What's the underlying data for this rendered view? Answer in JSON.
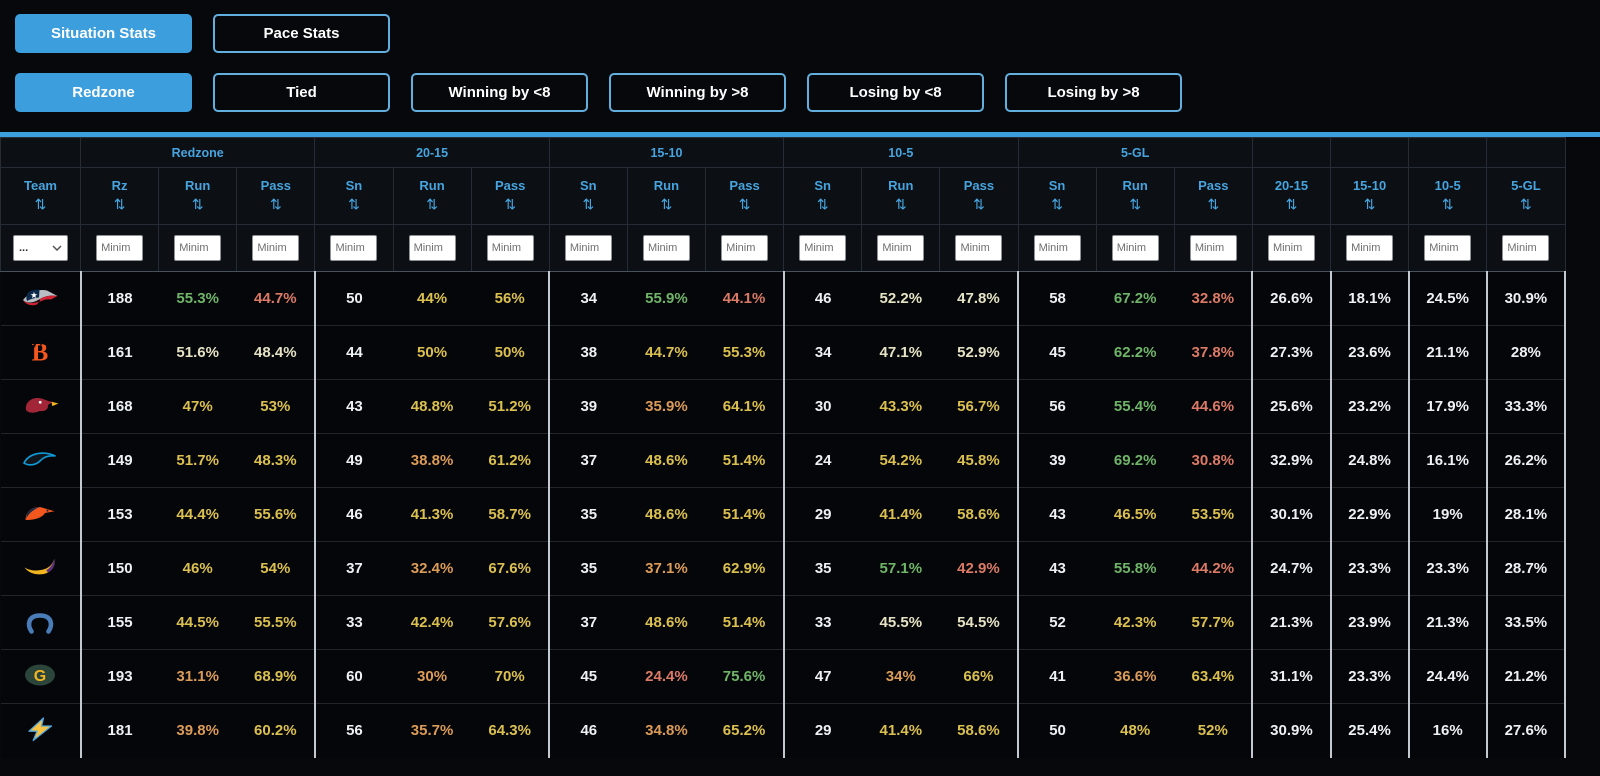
{
  "accent_color": "#3d9edd",
  "header_text_color": "#46a4de",
  "tabs_primary": [
    {
      "label": "Situation Stats",
      "active": true
    },
    {
      "label": "Pace Stats",
      "active": false
    }
  ],
  "tabs_secondary": [
    {
      "label": "Redzone",
      "active": true
    },
    {
      "label": "Tied",
      "active": false
    },
    {
      "label": "Winning by <8",
      "active": false
    },
    {
      "label": "Winning by >8",
      "active": false
    },
    {
      "label": "Losing by <8",
      "active": false
    },
    {
      "label": "Losing by >8",
      "active": false
    }
  ],
  "icons": {
    "sort": "⇅",
    "dropdown_chevron": "⌄"
  },
  "table": {
    "team_filter_value": "...",
    "filter_placeholder": "Minim",
    "heat_colors": {
      "g": "#6fb568",
      "y": "#dcc04f",
      "o": "#dc9b57",
      "s": "#dc7a66",
      "p": "#e6e2c4",
      "w": "#eef1f4"
    },
    "groups": [
      {
        "label": "",
        "cols": [
          {
            "label": "Team",
            "type": "team"
          }
        ]
      },
      {
        "label": "Redzone",
        "cols": [
          {
            "label": "Rz",
            "type": "count"
          },
          {
            "label": "Run",
            "type": "pct"
          },
          {
            "label": "Pass",
            "type": "pct"
          }
        ]
      },
      {
        "label": "20-15",
        "cols": [
          {
            "label": "Sn",
            "type": "count"
          },
          {
            "label": "Run",
            "type": "pct"
          },
          {
            "label": "Pass",
            "type": "pct"
          }
        ]
      },
      {
        "label": "15-10",
        "cols": [
          {
            "label": "Sn",
            "type": "count"
          },
          {
            "label": "Run",
            "type": "pct"
          },
          {
            "label": "Pass",
            "type": "pct"
          }
        ]
      },
      {
        "label": "10-5",
        "cols": [
          {
            "label": "Sn",
            "type": "count"
          },
          {
            "label": "Run",
            "type": "pct"
          },
          {
            "label": "Pass",
            "type": "pct"
          }
        ]
      },
      {
        "label": "5-GL",
        "cols": [
          {
            "label": "Sn",
            "type": "count"
          },
          {
            "label": "Run",
            "type": "pct"
          },
          {
            "label": "Pass",
            "type": "pct"
          }
        ]
      },
      {
        "label": "",
        "cols": [
          {
            "label": "20-15",
            "type": "plain"
          }
        ]
      },
      {
        "label": "",
        "cols": [
          {
            "label": "15-10",
            "type": "plain"
          }
        ]
      },
      {
        "label": "",
        "cols": [
          {
            "label": "10-5",
            "type": "plain"
          }
        ]
      },
      {
        "label": "",
        "cols": [
          {
            "label": "5-GL",
            "type": "plain"
          }
        ]
      }
    ],
    "rows": [
      {
        "team": "patriots",
        "cells": [
          {
            "v": "188"
          },
          {
            "v": "55.3%",
            "c": "g"
          },
          {
            "v": "44.7%",
            "c": "s"
          },
          {
            "v": "50"
          },
          {
            "v": "44%",
            "c": "y"
          },
          {
            "v": "56%",
            "c": "y"
          },
          {
            "v": "34"
          },
          {
            "v": "55.9%",
            "c": "g"
          },
          {
            "v": "44.1%",
            "c": "s"
          },
          {
            "v": "46"
          },
          {
            "v": "52.2%",
            "c": "p"
          },
          {
            "v": "47.8%",
            "c": "p"
          },
          {
            "v": "58"
          },
          {
            "v": "67.2%",
            "c": "g"
          },
          {
            "v": "32.8%",
            "c": "s"
          },
          {
            "v": "26.6%"
          },
          {
            "v": "18.1%"
          },
          {
            "v": "24.5%"
          },
          {
            "v": "30.9%"
          }
        ]
      },
      {
        "team": "bengals",
        "cells": [
          {
            "v": "161"
          },
          {
            "v": "51.6%",
            "c": "p"
          },
          {
            "v": "48.4%",
            "c": "p"
          },
          {
            "v": "44"
          },
          {
            "v": "50%",
            "c": "y"
          },
          {
            "v": "50%",
            "c": "y"
          },
          {
            "v": "38"
          },
          {
            "v": "44.7%",
            "c": "y"
          },
          {
            "v": "55.3%",
            "c": "y"
          },
          {
            "v": "34"
          },
          {
            "v": "47.1%",
            "c": "p"
          },
          {
            "v": "52.9%",
            "c": "p"
          },
          {
            "v": "45"
          },
          {
            "v": "62.2%",
            "c": "g"
          },
          {
            "v": "37.8%",
            "c": "s"
          },
          {
            "v": "27.3%"
          },
          {
            "v": "23.6%"
          },
          {
            "v": "21.1%"
          },
          {
            "v": "28%"
          }
        ]
      },
      {
        "team": "cardinals",
        "cells": [
          {
            "v": "168"
          },
          {
            "v": "47%",
            "c": "y"
          },
          {
            "v": "53%",
            "c": "y"
          },
          {
            "v": "43"
          },
          {
            "v": "48.8%",
            "c": "y"
          },
          {
            "v": "51.2%",
            "c": "y"
          },
          {
            "v": "39"
          },
          {
            "v": "35.9%",
            "c": "o"
          },
          {
            "v": "64.1%",
            "c": "y"
          },
          {
            "v": "30"
          },
          {
            "v": "43.3%",
            "c": "y"
          },
          {
            "v": "56.7%",
            "c": "y"
          },
          {
            "v": "56"
          },
          {
            "v": "55.4%",
            "c": "g"
          },
          {
            "v": "44.6%",
            "c": "s"
          },
          {
            "v": "25.6%"
          },
          {
            "v": "23.2%"
          },
          {
            "v": "17.9%"
          },
          {
            "v": "33.3%"
          }
        ]
      },
      {
        "team": "panthers",
        "cells": [
          {
            "v": "149"
          },
          {
            "v": "51.7%",
            "c": "y"
          },
          {
            "v": "48.3%",
            "c": "y"
          },
          {
            "v": "49"
          },
          {
            "v": "38.8%",
            "c": "o"
          },
          {
            "v": "61.2%",
            "c": "y"
          },
          {
            "v": "37"
          },
          {
            "v": "48.6%",
            "c": "y"
          },
          {
            "v": "51.4%",
            "c": "y"
          },
          {
            "v": "24"
          },
          {
            "v": "54.2%",
            "c": "y"
          },
          {
            "v": "45.8%",
            "c": "y"
          },
          {
            "v": "39"
          },
          {
            "v": "69.2%",
            "c": "g"
          },
          {
            "v": "30.8%",
            "c": "s"
          },
          {
            "v": "32.9%"
          },
          {
            "v": "24.8%"
          },
          {
            "v": "16.1%"
          },
          {
            "v": "26.2%"
          }
        ]
      },
      {
        "team": "broncos",
        "cells": [
          {
            "v": "153"
          },
          {
            "v": "44.4%",
            "c": "y"
          },
          {
            "v": "55.6%",
            "c": "y"
          },
          {
            "v": "46"
          },
          {
            "v": "41.3%",
            "c": "y"
          },
          {
            "v": "58.7%",
            "c": "y"
          },
          {
            "v": "35"
          },
          {
            "v": "48.6%",
            "c": "y"
          },
          {
            "v": "51.4%",
            "c": "y"
          },
          {
            "v": "29"
          },
          {
            "v": "41.4%",
            "c": "y"
          },
          {
            "v": "58.6%",
            "c": "y"
          },
          {
            "v": "43"
          },
          {
            "v": "46.5%",
            "c": "y"
          },
          {
            "v": "53.5%",
            "c": "y"
          },
          {
            "v": "30.1%"
          },
          {
            "v": "22.9%"
          },
          {
            "v": "19%"
          },
          {
            "v": "28.1%"
          }
        ]
      },
      {
        "team": "vikings",
        "cells": [
          {
            "v": "150"
          },
          {
            "v": "46%",
            "c": "y"
          },
          {
            "v": "54%",
            "c": "y"
          },
          {
            "v": "37"
          },
          {
            "v": "32.4%",
            "c": "o"
          },
          {
            "v": "67.6%",
            "c": "y"
          },
          {
            "v": "35"
          },
          {
            "v": "37.1%",
            "c": "o"
          },
          {
            "v": "62.9%",
            "c": "y"
          },
          {
            "v": "35"
          },
          {
            "v": "57.1%",
            "c": "g"
          },
          {
            "v": "42.9%",
            "c": "s"
          },
          {
            "v": "43"
          },
          {
            "v": "55.8%",
            "c": "g"
          },
          {
            "v": "44.2%",
            "c": "s"
          },
          {
            "v": "24.7%"
          },
          {
            "v": "23.3%"
          },
          {
            "v": "23.3%"
          },
          {
            "v": "28.7%"
          }
        ]
      },
      {
        "team": "colts",
        "cells": [
          {
            "v": "155"
          },
          {
            "v": "44.5%",
            "c": "y"
          },
          {
            "v": "55.5%",
            "c": "y"
          },
          {
            "v": "33"
          },
          {
            "v": "42.4%",
            "c": "y"
          },
          {
            "v": "57.6%",
            "c": "y"
          },
          {
            "v": "37"
          },
          {
            "v": "48.6%",
            "c": "y"
          },
          {
            "v": "51.4%",
            "c": "y"
          },
          {
            "v": "33"
          },
          {
            "v": "45.5%",
            "c": "p"
          },
          {
            "v": "54.5%",
            "c": "p"
          },
          {
            "v": "52"
          },
          {
            "v": "42.3%",
            "c": "y"
          },
          {
            "v": "57.7%",
            "c": "y"
          },
          {
            "v": "21.3%"
          },
          {
            "v": "23.9%"
          },
          {
            "v": "21.3%"
          },
          {
            "v": "33.5%"
          }
        ]
      },
      {
        "team": "packers",
        "cells": [
          {
            "v": "193"
          },
          {
            "v": "31.1%",
            "c": "o"
          },
          {
            "v": "68.9%",
            "c": "y"
          },
          {
            "v": "60"
          },
          {
            "v": "30%",
            "c": "o"
          },
          {
            "v": "70%",
            "c": "y"
          },
          {
            "v": "45"
          },
          {
            "v": "24.4%",
            "c": "s"
          },
          {
            "v": "75.6%",
            "c": "g"
          },
          {
            "v": "47"
          },
          {
            "v": "34%",
            "c": "o"
          },
          {
            "v": "66%",
            "c": "y"
          },
          {
            "v": "41"
          },
          {
            "v": "36.6%",
            "c": "o"
          },
          {
            "v": "63.4%",
            "c": "y"
          },
          {
            "v": "31.1%"
          },
          {
            "v": "23.3%"
          },
          {
            "v": "24.4%"
          },
          {
            "v": "21.2%"
          }
        ]
      },
      {
        "team": "chargers",
        "cells": [
          {
            "v": "181"
          },
          {
            "v": "39.8%",
            "c": "o"
          },
          {
            "v": "60.2%",
            "c": "y"
          },
          {
            "v": "56"
          },
          {
            "v": "35.7%",
            "c": "o"
          },
          {
            "v": "64.3%",
            "c": "y"
          },
          {
            "v": "46"
          },
          {
            "v": "34.8%",
            "c": "o"
          },
          {
            "v": "65.2%",
            "c": "y"
          },
          {
            "v": "29"
          },
          {
            "v": "41.4%",
            "c": "y"
          },
          {
            "v": "58.6%",
            "c": "y"
          },
          {
            "v": "50"
          },
          {
            "v": "48%",
            "c": "y"
          },
          {
            "v": "52%",
            "c": "y"
          },
          {
            "v": "30.9%"
          },
          {
            "v": "25.4%"
          },
          {
            "v": "16%"
          },
          {
            "v": "27.6%"
          }
        ]
      }
    ]
  }
}
